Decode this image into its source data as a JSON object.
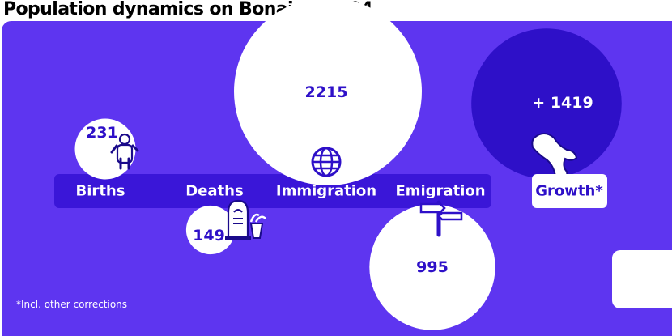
{
  "title": "Population dynamics on Bonaire, 2024",
  "footnote": "*Incl. other corrections",
  "colors": {
    "panel": "#5E35F0",
    "band": "#3A16D8",
    "growth_circle": "#2E10C8",
    "circle": "#FFFFFF",
    "value_text": "#2E10C8",
    "logo": "#00B9C6"
  },
  "icons": [
    "baby-icon",
    "gravestone-icon",
    "globe-icon",
    "signpost-icon",
    "bonaire-island-icon",
    "cbs-logo-icon"
  ],
  "chart_data": {
    "type": "bubble",
    "title": "Population dynamics on Bonaire, 2024",
    "categories": [
      "Births",
      "Deaths",
      "Immigration",
      "Emigration",
      "Growth*"
    ],
    "values": [
      231,
      149,
      2215,
      995,
      1419
    ],
    "value_labels": [
      "231",
      "149",
      "2215",
      "995",
      "+ 1419"
    ],
    "note": "*Incl. other corrections"
  }
}
